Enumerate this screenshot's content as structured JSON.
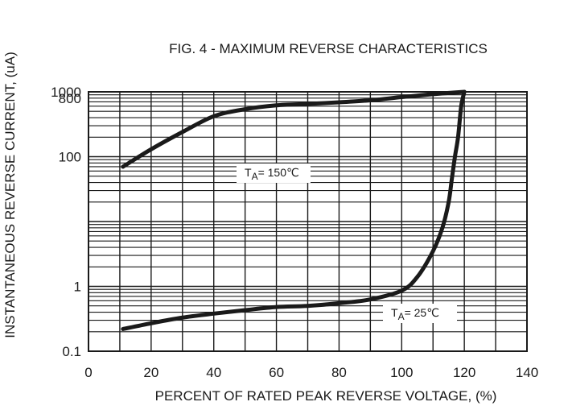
{
  "chart_data": {
    "type": "line",
    "title": "FIG. 4 - MAXIMUM REVERSE CHARACTERISTICS",
    "xlabel": "PERCENT OF RATED PEAK REVERSE VOLTAGE, (%)",
    "ylabel": "INSTANTANEOUS REVERSE CURRENT, (uA)",
    "xlim": [
      0,
      140
    ],
    "ylim": [
      0.1,
      1000
    ],
    "y_scale": "log",
    "grid": true,
    "x_ticks": [
      0,
      20,
      40,
      60,
      80,
      100,
      120,
      140
    ],
    "y_ticks": [
      {
        "value": 0.1,
        "label": "0.1"
      },
      {
        "value": 1,
        "label": "1"
      },
      {
        "value": 100,
        "label": "100"
      },
      {
        "value": 800,
        "label": "800"
      },
      {
        "value": 1000,
        "label": "1000"
      }
    ],
    "series": [
      {
        "label_main": "T",
        "label_sub": "A",
        "label_rest": "= 150℃",
        "points": [
          [
            11,
            70
          ],
          [
            20,
            130
          ],
          [
            30,
            240
          ],
          [
            40,
            420
          ],
          [
            50,
            540
          ],
          [
            60,
            620
          ],
          [
            70,
            650
          ],
          [
            80,
            690
          ],
          [
            90,
            740
          ],
          [
            100,
            830
          ],
          [
            110,
            920
          ],
          [
            120,
            1000
          ]
        ]
      },
      {
        "label_main": "T",
        "label_sub": "A",
        "label_rest": "= 25℃",
        "points": [
          [
            11,
            0.22
          ],
          [
            20,
            0.27
          ],
          [
            30,
            0.33
          ],
          [
            40,
            0.38
          ],
          [
            50,
            0.43
          ],
          [
            60,
            0.48
          ],
          [
            70,
            0.5
          ],
          [
            80,
            0.55
          ],
          [
            90,
            0.63
          ],
          [
            100,
            0.86
          ],
          [
            105,
            1.4
          ],
          [
            110,
            3.5
          ],
          [
            113,
            8
          ],
          [
            115,
            20
          ],
          [
            116,
            45
          ],
          [
            117,
            100
          ],
          [
            118,
            200
          ],
          [
            119,
            600
          ],
          [
            120,
            1000
          ]
        ]
      }
    ]
  }
}
